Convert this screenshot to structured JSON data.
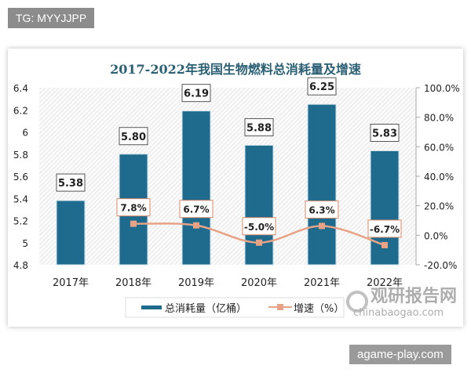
{
  "tag": "TG: MYYJJPP",
  "site": "agame-play.com",
  "watermark": {
    "cn": "观研报告网",
    "en": "chinabaogao.com"
  },
  "colors": {
    "bar": "#1f6b8e",
    "line": "#e8a285",
    "title": "#2a5f74"
  },
  "chart_data": {
    "type": "bar+line",
    "title": "2017-2022年我国生物燃料总消耗量及增速",
    "categories": [
      "2017年",
      "2018年",
      "2019年",
      "2020年",
      "2021年",
      "2022年"
    ],
    "series": [
      {
        "name": "总消耗量（亿桶）",
        "type": "bar",
        "axis": "left",
        "values": [
          5.38,
          5.8,
          6.19,
          5.88,
          6.25,
          5.83
        ],
        "labels": [
          "5.38",
          "5.80",
          "6.19",
          "5.88",
          "6.25",
          "5.83"
        ]
      },
      {
        "name": "增速（%）",
        "type": "line",
        "axis": "right",
        "values": [
          null,
          7.8,
          6.7,
          -5.0,
          6.3,
          -6.7
        ],
        "labels": [
          "",
          "7.8%",
          "6.7%",
          "-5.0%",
          "6.3%",
          "-6.7%"
        ]
      }
    ],
    "left_axis": {
      "ylim": [
        4.8,
        6.4
      ],
      "ticks": [
        "4.8",
        "5",
        "5.2",
        "5.4",
        "5.6",
        "5.8",
        "6",
        "6.2",
        "6.4"
      ]
    },
    "right_axis": {
      "ylim": [
        -20,
        100
      ],
      "ticks": [
        "-20.0%",
        "0.0%",
        "20.0%",
        "40.0%",
        "60.0%",
        "80.0%",
        "100.0%"
      ]
    },
    "legend": "bottom"
  }
}
